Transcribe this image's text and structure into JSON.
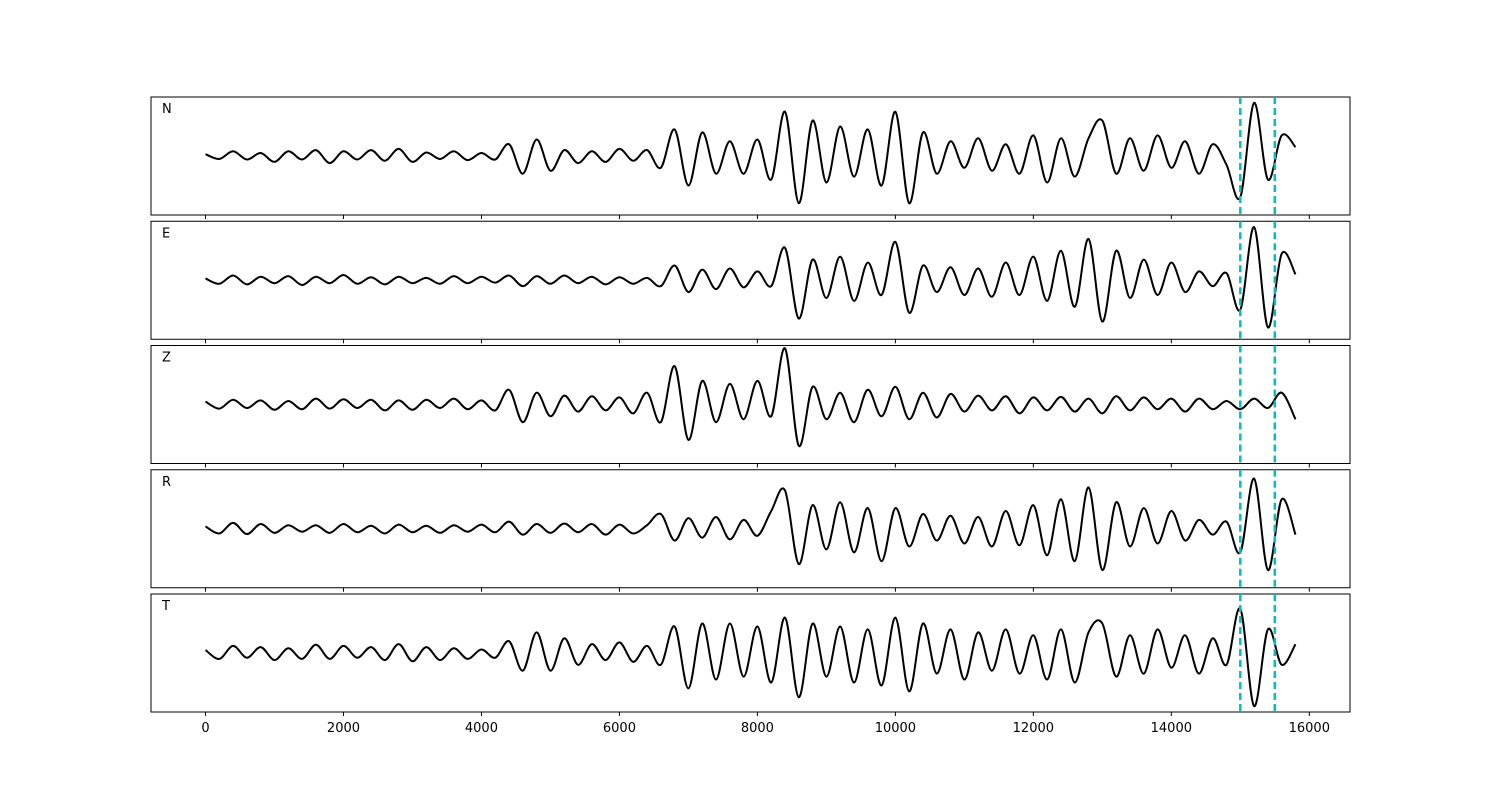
{
  "chart_data": {
    "type": "line",
    "subplots": true,
    "x": [
      0,
      200,
      400,
      600,
      800,
      1000,
      1200,
      1400,
      1600,
      1800,
      2000,
      2200,
      2400,
      2600,
      2800,
      3000,
      3200,
      3400,
      3600,
      3800,
      4000,
      4200,
      4400,
      4600,
      4800,
      5000,
      5200,
      5400,
      5600,
      5800,
      6000,
      6200,
      6400,
      6600,
      6800,
      7000,
      7200,
      7400,
      7600,
      7800,
      8000,
      8200,
      8400,
      8600,
      8800,
      9000,
      9200,
      9400,
      9600,
      9800,
      10000,
      10200,
      10400,
      10600,
      10800,
      11000,
      11200,
      11400,
      11600,
      11800,
      12000,
      12200,
      12400,
      12600,
      12800,
      13000,
      13200,
      13400,
      13600,
      13800,
      14000,
      14200,
      14400,
      14600,
      14800,
      15000,
      15200,
      15400,
      15600,
      15800
    ],
    "xlim": [
      -790,
      16590
    ],
    "xticks": [
      0,
      2000,
      4000,
      6000,
      8000,
      10000,
      12000,
      14000,
      16000
    ],
    "ylim": [
      -1,
      1
    ],
    "vlines": {
      "values": [
        15000,
        15500
      ],
      "color": "#00bfbf"
    },
    "series": [
      {
        "name": "N",
        "color": "#000000",
        "values": [
          0.03,
          -0.05,
          0.08,
          -0.06,
          0.05,
          -0.1,
          0.08,
          -0.06,
          0.1,
          -0.12,
          0.08,
          -0.06,
          0.1,
          -0.08,
          0.12,
          -0.1,
          0.06,
          -0.05,
          0.08,
          -0.07,
          0.05,
          -0.06,
          0.2,
          -0.3,
          0.28,
          -0.25,
          0.1,
          -0.12,
          0.08,
          -0.1,
          0.12,
          -0.08,
          0.1,
          -0.2,
          0.45,
          -0.5,
          0.4,
          -0.3,
          0.25,
          -0.3,
          0.28,
          -0.4,
          0.75,
          -0.8,
          0.6,
          -0.45,
          0.5,
          -0.35,
          0.45,
          -0.5,
          0.75,
          -0.8,
          0.4,
          -0.3,
          0.25,
          -0.2,
          0.3,
          -0.25,
          0.2,
          -0.3,
          0.35,
          -0.45,
          0.3,
          -0.35,
          0.3,
          0.6,
          -0.3,
          0.3,
          -0.25,
          0.35,
          -0.2,
          0.25,
          -0.3,
          0.2,
          -0.15,
          -0.7,
          0.9,
          -0.4,
          0.35,
          0.15
        ]
      },
      {
        "name": "E",
        "color": "#000000",
        "values": [
          0.03,
          -0.06,
          0.08,
          -0.07,
          0.06,
          -0.05,
          0.07,
          -0.08,
          0.06,
          -0.05,
          0.09,
          -0.06,
          0.05,
          -0.07,
          0.06,
          -0.05,
          0.04,
          -0.06,
          0.07,
          -0.05,
          0.06,
          -0.04,
          0.08,
          -0.1,
          0.07,
          -0.06,
          0.08,
          -0.05,
          0.06,
          -0.07,
          0.05,
          -0.06,
          0.04,
          -0.1,
          0.25,
          -0.2,
          0.18,
          -0.15,
          0.2,
          -0.12,
          0.15,
          -0.1,
          0.55,
          -0.65,
          0.35,
          -0.3,
          0.4,
          -0.35,
          0.3,
          -0.25,
          0.65,
          -0.55,
          0.25,
          -0.2,
          0.22,
          -0.25,
          0.2,
          -0.28,
          0.3,
          -0.25,
          0.4,
          -0.35,
          0.5,
          -0.45,
          0.7,
          -0.7,
          0.5,
          -0.3,
          0.35,
          -0.25,
          0.3,
          -0.2,
          0.15,
          -0.1,
          0.12,
          -0.5,
          0.9,
          -0.8,
          0.45,
          0.1
        ]
      },
      {
        "name": "Z",
        "color": "#000000",
        "values": [
          0.05,
          -0.07,
          0.08,
          -0.06,
          0.07,
          -0.09,
          0.06,
          -0.08,
          0.1,
          -0.07,
          0.09,
          -0.06,
          0.08,
          -0.1,
          0.07,
          -0.09,
          0.08,
          -0.06,
          0.1,
          -0.08,
          0.07,
          -0.1,
          0.25,
          -0.3,
          0.2,
          -0.2,
          0.15,
          -0.12,
          0.14,
          -0.1,
          0.12,
          -0.15,
          0.2,
          -0.3,
          0.65,
          -0.6,
          0.4,
          -0.3,
          0.35,
          -0.25,
          0.4,
          -0.2,
          0.95,
          -0.7,
          0.3,
          -0.25,
          0.2,
          -0.3,
          0.25,
          -0.2,
          0.3,
          -0.25,
          0.2,
          -0.22,
          0.18,
          -0.12,
          0.15,
          -0.1,
          0.14,
          -0.15,
          0.12,
          -0.1,
          0.13,
          -0.12,
          0.1,
          -0.15,
          0.14,
          -0.1,
          0.12,
          -0.08,
          0.1,
          -0.12,
          0.1,
          -0.08,
          0.06,
          -0.08,
          0.1,
          -0.06,
          0.2,
          -0.25
        ]
      },
      {
        "name": "R",
        "color": "#000000",
        "values": [
          0.04,
          -0.08,
          0.1,
          -0.09,
          0.08,
          -0.07,
          0.06,
          -0.05,
          0.06,
          -0.07,
          0.08,
          -0.06,
          0.05,
          -0.08,
          0.07,
          -0.06,
          0.05,
          -0.07,
          0.06,
          -0.05,
          0.07,
          -0.06,
          0.12,
          -0.1,
          0.08,
          -0.07,
          0.09,
          -0.06,
          0.08,
          -0.1,
          0.07,
          -0.08,
          0.06,
          0.25,
          -0.2,
          0.18,
          -0.15,
          0.2,
          -0.18,
          0.15,
          -0.12,
          0.3,
          0.65,
          -0.6,
          0.4,
          -0.35,
          0.45,
          -0.4,
          0.35,
          -0.55,
          0.35,
          -0.3,
          0.25,
          -0.2,
          0.22,
          -0.25,
          0.2,
          -0.3,
          0.3,
          -0.28,
          0.4,
          -0.45,
          0.5,
          -0.55,
          0.7,
          -0.7,
          0.45,
          -0.3,
          0.35,
          -0.25,
          0.3,
          -0.2,
          0.15,
          -0.1,
          0.12,
          -0.4,
          0.85,
          -0.7,
          0.5,
          -0.1
        ]
      },
      {
        "name": "T",
        "color": "#000000",
        "values": [
          0.05,
          -0.1,
          0.12,
          -0.08,
          0.1,
          -0.12,
          0.08,
          -0.1,
          0.14,
          -0.1,
          0.12,
          -0.08,
          0.1,
          -0.12,
          0.15,
          -0.14,
          0.1,
          -0.12,
          0.08,
          -0.1,
          0.06,
          -0.08,
          0.2,
          -0.3,
          0.35,
          -0.3,
          0.25,
          -0.2,
          0.15,
          -0.12,
          0.18,
          -0.15,
          0.12,
          -0.2,
          0.45,
          -0.6,
          0.5,
          -0.45,
          0.5,
          -0.4,
          0.45,
          -0.5,
          0.6,
          -0.75,
          0.5,
          -0.4,
          0.45,
          -0.5,
          0.4,
          -0.55,
          0.6,
          -0.65,
          0.5,
          -0.35,
          0.4,
          -0.45,
          0.35,
          -0.3,
          0.4,
          -0.35,
          0.3,
          -0.45,
          0.4,
          -0.5,
          0.35,
          0.5,
          -0.4,
          0.3,
          -0.35,
          0.4,
          -0.25,
          0.3,
          -0.35,
          0.25,
          -0.2,
          0.75,
          -0.9,
          0.4,
          -0.2,
          0.15
        ]
      }
    ]
  }
}
